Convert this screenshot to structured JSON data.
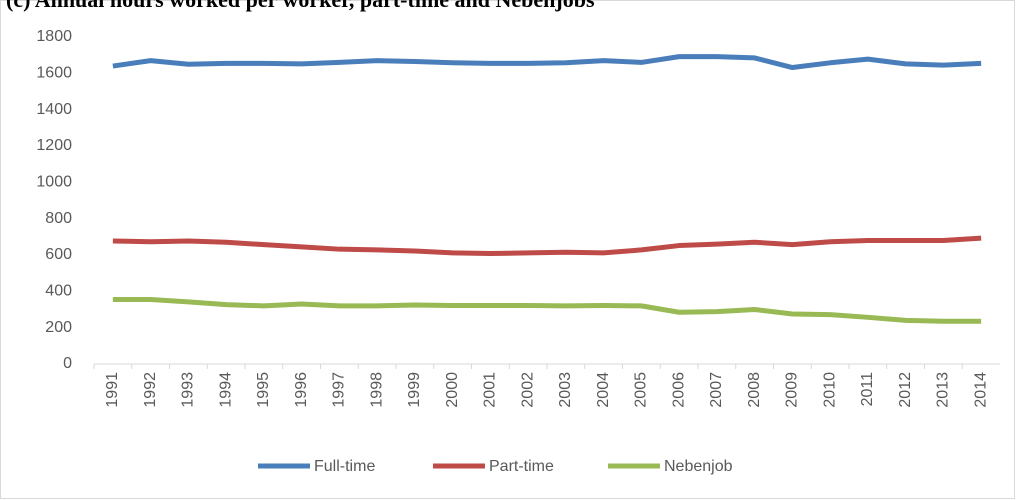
{
  "chart_data": {
    "type": "line",
    "title": "(c)     Annual hours worked per worker, part-time and Nebenjobs",
    "categories": [
      "1991",
      "1992",
      "1993",
      "1994",
      "1995",
      "1996",
      "1997",
      "1998",
      "1999",
      "2000",
      "2001",
      "2002",
      "2003",
      "2004",
      "2005",
      "2006",
      "2007",
      "2008",
      "2009",
      "2010",
      "2011",
      "2012",
      "2013",
      "2014"
    ],
    "series": [
      {
        "name": "Full-time",
        "color": "#4a7ebb",
        "values": [
          1640,
          1670,
          1650,
          1655,
          1655,
          1652,
          1660,
          1670,
          1665,
          1658,
          1655,
          1655,
          1658,
          1670,
          1660,
          1692,
          1692,
          1685,
          1632,
          1658,
          1678,
          1652,
          1645,
          1655
        ]
      },
      {
        "name": "Part-time",
        "color": "#be4b48",
        "values": [
          677,
          673,
          677,
          670,
          657,
          645,
          632,
          628,
          622,
          612,
          608,
          612,
          615,
          612,
          628,
          652,
          660,
          670,
          657,
          673,
          680,
          680,
          680,
          693
        ]
      },
      {
        "name": "Nebenjob",
        "color": "#98b954",
        "values": [
          355,
          355,
          342,
          327,
          320,
          330,
          320,
          320,
          325,
          322,
          322,
          322,
          320,
          322,
          320,
          285,
          288,
          300,
          275,
          272,
          257,
          240,
          235,
          235
        ]
      }
    ],
    "ylim": [
      0,
      1800
    ],
    "yticks": [
      0,
      200,
      400,
      600,
      800,
      1000,
      1200,
      1400,
      1600,
      1800
    ],
    "grid": false,
    "legend": "bottom"
  }
}
